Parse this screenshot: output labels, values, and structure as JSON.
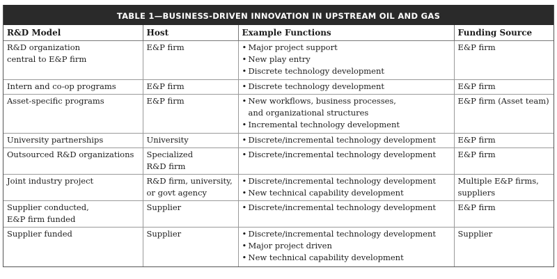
{
  "title": "TABLE 1—BUSINESS-DRIVEN INNOVATION IN UPSTREAM OIL AND GAS",
  "columns": [
    "R&D Model",
    "Host",
    "Example Functions",
    "Funding Source"
  ],
  "rows": [
    {
      "model": [
        "R&D organization",
        "central to E&P firm"
      ],
      "host": [
        "E&P firm"
      ],
      "functions": [
        "Major project support",
        "New play entry",
        "Discrete technology development"
      ],
      "funding": [
        "E&P firm"
      ]
    },
    {
      "model": [
        "Intern and co-op programs"
      ],
      "host": [
        "E&P firm"
      ],
      "functions": [
        "Discrete technology development"
      ],
      "funding": [
        "E&P firm"
      ]
    },
    {
      "model": [
        "Asset-specific programs"
      ],
      "host": [
        "E&P firm"
      ],
      "functions": [
        "New workflows, business processes,  and organizational structures",
        "Incremental technology development"
      ],
      "funding": [
        "E&P firm (Asset team)"
      ]
    },
    {
      "model": [
        "University partnerships"
      ],
      "host": [
        "University"
      ],
      "functions": [
        "Discrete/incremental technology development"
      ],
      "funding": [
        "E&P firm"
      ]
    },
    {
      "model": [
        "Outsourced R&D organizations"
      ],
      "host": [
        "Specialized",
        "R&D firm"
      ],
      "functions": [
        "Discrete/incremental technology development"
      ],
      "funding": [
        "E&P firm"
      ]
    },
    {
      "model": [
        "Joint industry project"
      ],
      "host": [
        "R&D firm, university,",
        "or govt agency"
      ],
      "functions": [
        "Discrete/incremental technology development",
        "New technical capability development"
      ],
      "funding": [
        "Multiple E&P firms,",
        "suppliers"
      ]
    },
    {
      "model": [
        "Supplier conducted,",
        "E&P firm funded"
      ],
      "host": [
        "Supplier"
      ],
      "functions": [
        "Discrete/incremental technology development"
      ],
      "funding": [
        "E&P firm"
      ]
    },
    {
      "model": [
        "Supplier funded"
      ],
      "host": [
        "Supplier"
      ],
      "functions": [
        "Discrete/incremental technology development",
        "Major project driven",
        "New technical capability development"
      ],
      "funding": [
        "Supplier"
      ]
    }
  ]
}
